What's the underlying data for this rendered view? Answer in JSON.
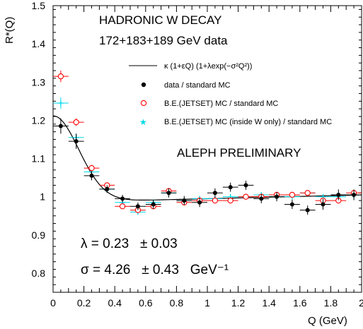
{
  "chart_data": {
    "type": "scatter",
    "title": "HADRONIC W DECAY",
    "subtitle": "172+183+189 GeV data",
    "xlabel": "Q (GeV)",
    "ylabel": "R*(Q)",
    "xlim": [
      0,
      2
    ],
    "ylim": [
      0.75,
      1.5
    ],
    "x_ticks": [
      "0",
      "0.2",
      "0.4",
      "0.6",
      "0.8",
      "1",
      "1.2",
      "1.4",
      "1.6",
      "1.8",
      "2"
    ],
    "y_ticks": [
      "0.8",
      "0.9",
      "1",
      "1.1",
      "1.2",
      "1.3",
      "1.4",
      "1.5"
    ],
    "grid": false,
    "legend_position": "top-right",
    "annotation": "ALEPH PRELIMINARY",
    "fit_label": "κ (1+εQ) (1+λexp(−σ²Q²))",
    "fit_result_lambda": "λ = 0.23   ± 0.03",
    "fit_result_sigma": "σ = 4.26   ± 0.43   GeV⁻¹",
    "fit_params": {
      "kappa": 0.985,
      "epsilon": 0.01,
      "lambda": 0.23,
      "sigma": 4.26
    },
    "series": [
      {
        "name": "data / standard MC",
        "marker": "filled-circle",
        "color": "#000000",
        "x": [
          0.05,
          0.15,
          0.25,
          0.35,
          0.45,
          0.55,
          0.65,
          0.75,
          0.85,
          0.95,
          1.05,
          1.15,
          1.25,
          1.35,
          1.45,
          1.55,
          1.65,
          1.75,
          1.85,
          1.95
        ],
        "y": [
          1.185,
          1.145,
          1.055,
          1.02,
          0.995,
          0.975,
          0.98,
          1.01,
          0.99,
          0.985,
          1.01,
          1.025,
          1.03,
          0.995,
          1.0,
          0.98,
          0.965,
          0.98,
          1.005,
          1.005
        ],
        "yerr": [
          0.02,
          0.02,
          0.012,
          0.01,
          0.01,
          0.01,
          0.012,
          0.012,
          0.012,
          0.012,
          0.012,
          0.012,
          0.012,
          0.012,
          0.012,
          0.012,
          0.012,
          0.014,
          0.014,
          0.014
        ]
      },
      {
        "name": "B.E.(JETSET) MC / standard MC",
        "marker": "open-circle",
        "color": "#ff0000",
        "x": [
          0.05,
          0.15,
          0.25,
          0.35,
          0.45,
          0.55,
          0.65,
          0.75,
          0.85,
          0.95,
          1.05,
          1.15,
          1.25,
          1.35,
          1.45,
          1.55,
          1.65,
          1.75,
          1.85,
          1.95
        ],
        "y": [
          1.315,
          1.195,
          1.075,
          1.03,
          0.975,
          0.965,
          0.975,
          1.015,
          0.985,
          0.99,
          0.99,
          0.99,
          1.0,
          1.0,
          1.005,
          1.005,
          1.01,
          0.99,
          0.99,
          1.01
        ],
        "yerr": [
          0.015,
          0.01,
          0.008,
          0.006,
          0.005,
          0.005,
          0.005,
          0.005,
          0.005,
          0.005,
          0.005,
          0.005,
          0.005,
          0.005,
          0.005,
          0.005,
          0.005,
          0.005,
          0.005,
          0.005
        ]
      },
      {
        "name": "B.E.(JETSET) MC (inside W only) / standard MC",
        "marker": "star",
        "color": "#00d8e8",
        "x": [
          0.05,
          0.15,
          0.25,
          0.35,
          0.45,
          0.55,
          0.65,
          0.75,
          0.85,
          0.95,
          1.05,
          1.15,
          1.25,
          1.35,
          1.45,
          1.55,
          1.65,
          1.75,
          1.85,
          1.95
        ],
        "y": [
          1.245,
          1.155,
          1.065,
          1.02,
          0.985,
          0.96,
          0.985,
          1.01,
          0.99,
          0.995,
          0.995,
          1.0,
          1.0,
          1.005,
          1.0,
          1.0,
          1.01,
          1.0,
          1.0,
          1.005
        ],
        "yerr": [
          0.015,
          0.01,
          0.008,
          0.006,
          0.005,
          0.005,
          0.005,
          0.005,
          0.005,
          0.005,
          0.005,
          0.005,
          0.005,
          0.005,
          0.005,
          0.005,
          0.005,
          0.005,
          0.005,
          0.005
        ]
      }
    ]
  }
}
